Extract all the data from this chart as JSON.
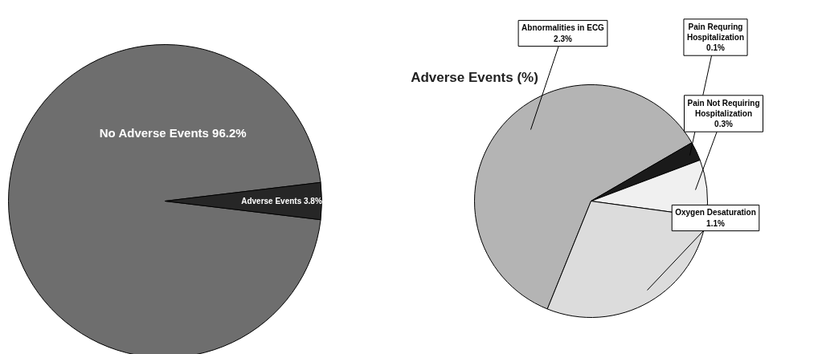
{
  "chart_data": [
    {
      "type": "pie",
      "categories": [
        "No Adverse Events",
        "Adverse Events"
      ],
      "values": [
        96.2,
        3.8
      ],
      "value_labels": [
        "96.2%",
        "3.8%"
      ],
      "colors": [
        "#6e6e6e",
        "#262626"
      ]
    },
    {
      "type": "pie",
      "title": "Adverse Events (%)",
      "categories": [
        "Abnormalities in ECG",
        "Pain Requring Hospitalization",
        "Pain Not Requiring Hospitalization",
        "Oxygen Desaturation"
      ],
      "values": [
        2.3,
        0.1,
        0.3,
        1.1
      ],
      "value_labels": [
        "2.3%",
        "0.1%",
        "0.3%",
        "1.1%"
      ],
      "colors": [
        "#b4b4b4",
        "#1a1a1a",
        "#f0f0f0",
        "#dcdcdc"
      ]
    }
  ]
}
